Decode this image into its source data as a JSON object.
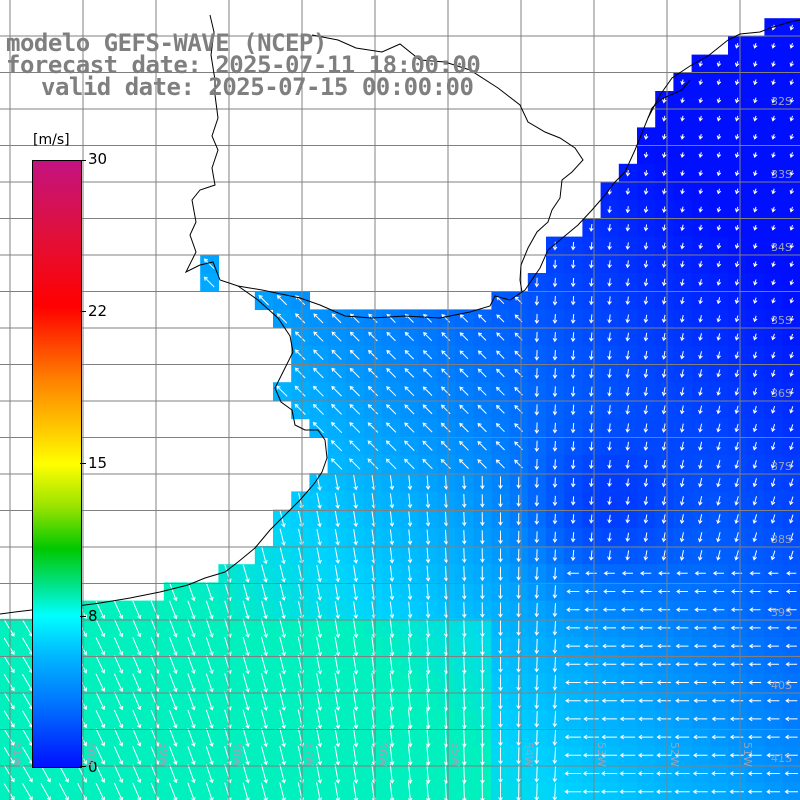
{
  "title": {
    "line1": "modelo GEFS-WAVE (NCEP)",
    "line2": "forecast date: 2025-07-11 18:00:00",
    "line3": "valid date: 2025-07-15 00:00:00"
  },
  "colorbar": {
    "unit": "[m/s]",
    "ticks": [
      "30",
      "22",
      "15",
      "8",
      "0"
    ]
  },
  "lat_labels": [
    "32S",
    "33S",
    "34S",
    "35S",
    "36S",
    "37S",
    "38S",
    "39S",
    "40S",
    "41S"
  ],
  "lon_labels": [
    "61W",
    "60W",
    "59W",
    "58W",
    "57W",
    "56W",
    "55W",
    "54W",
    "53W",
    "52W",
    "51W"
  ],
  "colors": {
    "land": "#ffffff",
    "coast": "#000000",
    "grid": "#808080",
    "title": "#7f7f7f",
    "arrows": "#ffffff",
    "ocean_low": "#0010ff",
    "ocean_mid": "#0098ff",
    "ocean_high": "#00f0c8"
  }
}
